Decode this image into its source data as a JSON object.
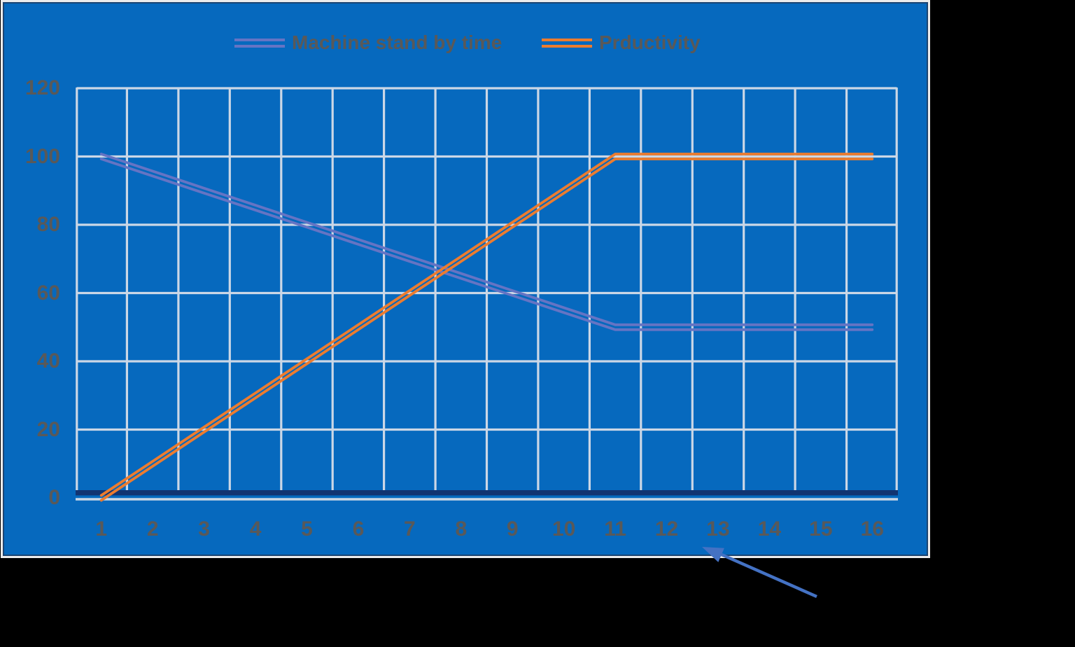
{
  "chart_data": {
    "type": "line",
    "title": "",
    "xlabel": "",
    "ylabel": "",
    "categories": [
      "1",
      "2",
      "3",
      "4",
      "5",
      "6",
      "7",
      "8",
      "9",
      "10",
      "11",
      "12",
      "13",
      "14",
      "15",
      "16"
    ],
    "series": [
      {
        "name": "Machine stand by time",
        "color": "#6574C4",
        "values": [
          100,
          95,
          90,
          85,
          80,
          75,
          70,
          65,
          60,
          55,
          50,
          50,
          50,
          50,
          50,
          50
        ]
      },
      {
        "name": "Prductivity",
        "color": "#EC7C2F",
        "values": [
          0,
          10,
          20,
          30,
          40,
          50,
          60,
          70,
          80,
          90,
          100,
          100,
          100,
          100,
          100,
          100
        ]
      }
    ],
    "ylim": [
      0,
      120
    ],
    "yticks": [
      0,
      20,
      40,
      60,
      80,
      100,
      120
    ],
    "ytick_step": 20,
    "grid": true,
    "gridline_style": "full-grid-vertical-and-horizontal",
    "axis_mode": "categories-between-gridlines",
    "line_style": "double-stroke",
    "legend_position": "top-center"
  },
  "annotation": {
    "type": "arrow",
    "description": "blue arrow from lower right pointing up-left at the x-axis below category 13"
  },
  "colors": {
    "page_background": "#000000",
    "chart_background": "#0669BE",
    "gridline": "#CBD7E6",
    "tick_label": "#595959",
    "chart_border": "#1B4472",
    "chart_outer_border": "#ECECEC",
    "x_axis_line": "#123471",
    "annotation_arrow": "#4472C4"
  }
}
